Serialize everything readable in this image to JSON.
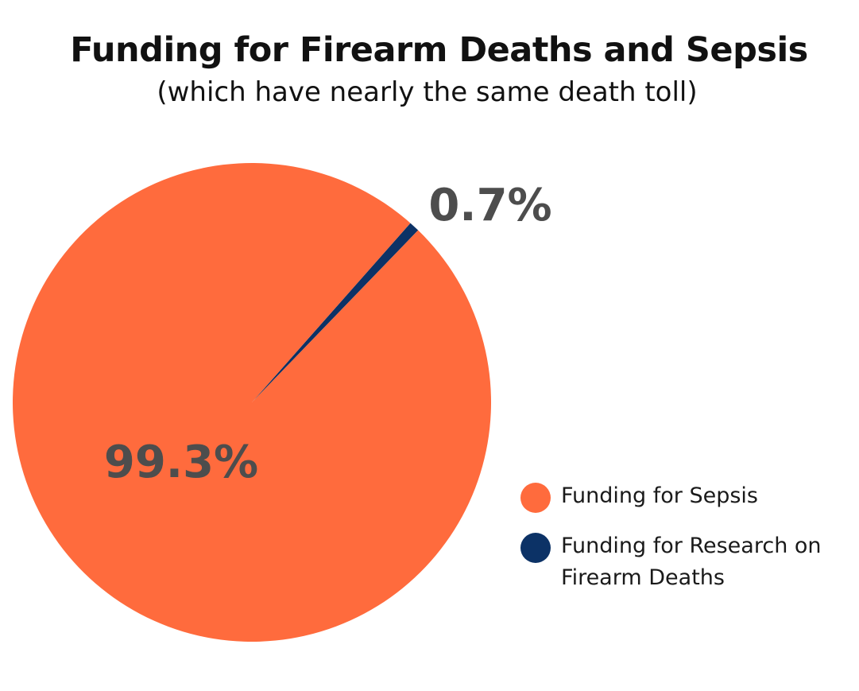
{
  "chart_data": {
    "type": "pie",
    "title": "Funding for Firearm Deaths and Sepsis",
    "subtitle": "(which have nearly the same death toll)",
    "slices": [
      {
        "label": "Funding for Sepsis",
        "value": 99.3,
        "display": "99.3%",
        "color": "#ff6b3d"
      },
      {
        "label": "Funding for Research on Firearm Deaths",
        "value": 0.7,
        "display": "0.7%",
        "color": "#0c3266"
      }
    ],
    "legend_position": "right"
  }
}
